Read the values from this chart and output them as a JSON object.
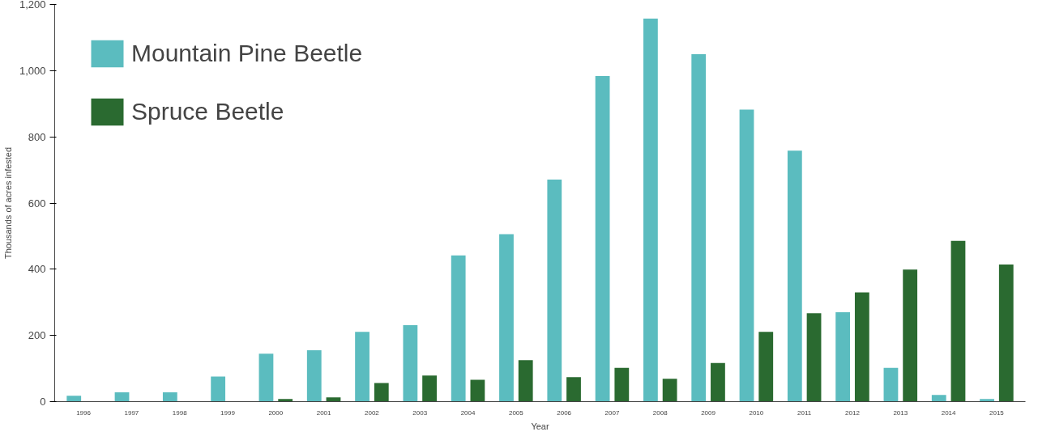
{
  "chart_data": {
    "type": "bar",
    "xlabel": "Year",
    "ylabel": "Thousands of acres infested",
    "categories": [
      "1996",
      "1997",
      "1998",
      "1999",
      "2000",
      "2001",
      "2002",
      "2003",
      "2004",
      "2005",
      "2006",
      "2007",
      "2008",
      "2009",
      "2010",
      "2011",
      "2012",
      "2013",
      "2014",
      "2015"
    ],
    "series": [
      {
        "name": "Mountain Pine Beetle",
        "color": "#5bbcbf",
        "values": [
          18,
          28,
          28,
          76,
          145,
          155,
          211,
          231,
          442,
          506,
          671,
          984,
          1157,
          1050,
          882,
          758,
          270,
          102,
          20,
          8
        ]
      },
      {
        "name": "Spruce Beetle",
        "color": "#2a6a30",
        "values": [
          0,
          0,
          0,
          0,
          8,
          13,
          56,
          79,
          66,
          125,
          74,
          102,
          69,
          117,
          211,
          267,
          330,
          399,
          486,
          414
        ]
      }
    ],
    "ylim": [
      0,
      1200
    ],
    "yticks": [
      0,
      {
        "value": 200,
        "label": "200"
      },
      {
        "value": 400,
        "label": "400"
      },
      {
        "value": 600,
        "label": "600"
      },
      {
        "value": 800,
        "label": "800"
      },
      {
        "value": 1000,
        "label": "1,000"
      },
      {
        "value": 1200,
        "label": "1,200"
      }
    ],
    "grid": false,
    "legend": "top left"
  }
}
